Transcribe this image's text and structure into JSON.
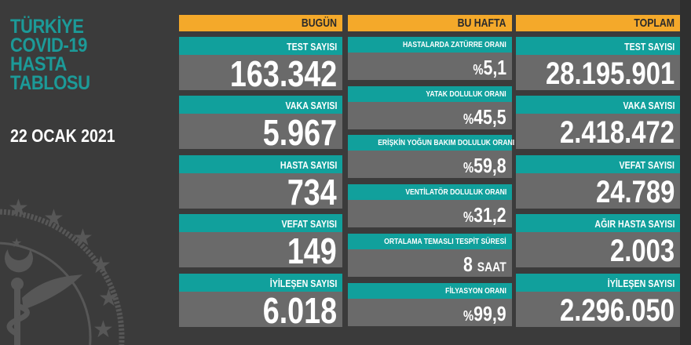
{
  "title": [
    "TÜRKİYE",
    "COVID-19",
    "HASTA",
    "TABLOSU"
  ],
  "date": "22 OCAK 2021",
  "colors": {
    "background": "#3b3b3b",
    "header": "#f4a92a",
    "label": "#11a09c",
    "value_bg": "#6a6a6a",
    "title": "#1c9a98"
  },
  "logo": "ministry-of-health-seal-icon",
  "today": {
    "header": "BUGÜN",
    "items": [
      {
        "label": "TEST SAYISI",
        "value": "163.342"
      },
      {
        "label": "VAKA SAYISI",
        "value": "5.967"
      },
      {
        "label": "HASTA SAYISI",
        "value": "734"
      },
      {
        "label": "VEFAT SAYISI",
        "value": "149"
      },
      {
        "label": "İYİLEŞEN SAYISI",
        "value": "6.018"
      }
    ]
  },
  "week": {
    "header": "BU HAFTA",
    "items": [
      {
        "label": "HASTALARDA ZATÜRRE ORANI",
        "prefix": "%",
        "value": "5,1"
      },
      {
        "label": "YATAK DOLULUK ORANI",
        "prefix": "%",
        "value": "45,5"
      },
      {
        "label": "ERİŞKİN YOĞUN BAKIM DOLULUK ORANI",
        "prefix": "%",
        "value": "59,8"
      },
      {
        "label": "VENTİLATÖR DOLULUK ORANI",
        "prefix": "%",
        "value": "31,2"
      },
      {
        "label": "ORTALAMA TEMASLI TESPİT SÜRESİ",
        "value": "8",
        "unit": "SAAT"
      },
      {
        "label": "FİLYASYON ORANI",
        "prefix": "%",
        "value": "99,9"
      }
    ]
  },
  "total": {
    "header": "TOPLAM",
    "items": [
      {
        "label": "TEST SAYISI",
        "value": "28.195.901"
      },
      {
        "label": "VAKA SAYISI",
        "value": "2.418.472"
      },
      {
        "label": "VEFAT SAYISI",
        "value": "24.789"
      },
      {
        "label": "AĞIR HASTA SAYISI",
        "value": "2.003"
      },
      {
        "label": "İYİLEŞEN SAYISI",
        "value": "2.296.050"
      }
    ]
  }
}
